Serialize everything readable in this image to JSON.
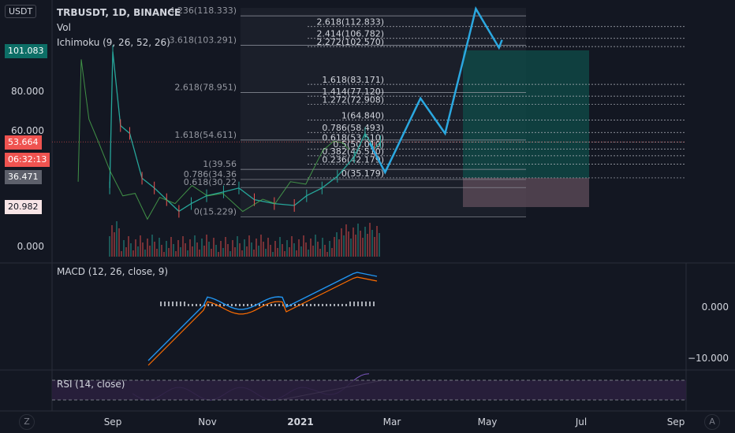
{
  "header": {
    "title": "TRBUSDT, 1D, BINANCE",
    "vol_label": "Vol",
    "ichimoku_label": "Ichimoku (9, 26, 52, 26)",
    "currency": "USDT"
  },
  "price_axis": {
    "ticks": [
      "80.000",
      "60.000",
      "0.000"
    ],
    "badges": [
      {
        "label": "101.083",
        "color": "#0d6e66"
      },
      {
        "label": "53.664",
        "color": "#ef5350"
      },
      {
        "label": "06:32:13",
        "color": "#ef5350"
      },
      {
        "label": "36.471",
        "color": "#5d606b"
      },
      {
        "label": "20.982",
        "color": "#f7e4e6"
      }
    ]
  },
  "macd": {
    "label": "MACD (12, 26, close, 9)",
    "ticks": [
      "0.000",
      "−10.000"
    ]
  },
  "rsi": {
    "label": "RSI (14, close)"
  },
  "time_axis": {
    "labels": [
      "Sep",
      "Nov",
      "2021",
      "Mar",
      "May",
      "Jul",
      "Sep"
    ]
  },
  "corners": {
    "left": "Z",
    "right": "A"
  },
  "chart_data": {
    "type": "line",
    "title": "TRBUSDT, 1D, BINANCE",
    "fib_levels_upper": [
      {
        "ratio": "4.236",
        "price": 118.333,
        "label": "4.236(118.333)"
      },
      {
        "ratio": "3.618",
        "price": 103.291,
        "label": "3.618(103.291)"
      },
      {
        "ratio": "2.618",
        "price": 78.951,
        "label": "2.618(78.951)"
      },
      {
        "ratio": "1.618",
        "price": 54.611,
        "label": "1.618(54.611)"
      },
      {
        "ratio": "1",
        "price": 39.56,
        "label": "1(39.56"
      },
      {
        "ratio": "0.786",
        "price": 34.36,
        "label": "0.786(34.36"
      },
      {
        "ratio": "0.618",
        "price": 30.22,
        "label": "0.618(30.22"
      },
      {
        "ratio": "0",
        "price": 15.229,
        "label": "0(15.229)"
      }
    ],
    "fib_levels_right": [
      {
        "ratio": "2.618",
        "price": 112.833,
        "label": "2.618(112.833)"
      },
      {
        "ratio": "2.414",
        "price": 106.782,
        "label": "2.414(106.782)"
      },
      {
        "ratio": "2.272",
        "price": 102.57,
        "label": "2.272(102.570)"
      },
      {
        "ratio": "1.618",
        "price": 83.171,
        "label": "1.618(83.171)"
      },
      {
        "ratio": "1.414",
        "price": 77.12,
        "label": "1.414(77.120)"
      },
      {
        "ratio": "1.272",
        "price": 72.908,
        "label": "1.272(72.908)"
      },
      {
        "ratio": "1",
        "price": 64.84,
        "label": "1(64.840)"
      },
      {
        "ratio": "0.786",
        "price": 58.493,
        "label": "0.786(58.493)"
      },
      {
        "ratio": "0.618",
        "price": 53.51,
        "label": "0.618(53.510)"
      },
      {
        "ratio": "0.5",
        "price": 50.01,
        "label": "0.5(50.010)"
      },
      {
        "ratio": "0.382",
        "price": 46.51,
        "label": "0.382(46.510)"
      },
      {
        "ratio": "0.236",
        "price": 42.179,
        "label": "0.236(42.179)"
      },
      {
        "ratio": "0",
        "price": 35.179,
        "label": "0(35.179)"
      }
    ],
    "projection_path": [
      {
        "date": "2021-02-15",
        "price": 53
      },
      {
        "date": "2021-02-25",
        "price": 38
      },
      {
        "date": "2021-03-20",
        "price": 76
      },
      {
        "date": "2021-04-05",
        "price": 58
      },
      {
        "date": "2021-04-25",
        "price": 122
      },
      {
        "date": "2021-05-10",
        "price": 102
      },
      {
        "date": "2021-05-12",
        "price": 106
      }
    ],
    "price_path": [
      {
        "date": "2020-08-30",
        "price": 30
      },
      {
        "date": "2020-09-01",
        "price": 100
      },
      {
        "date": "2020-09-06",
        "price": 62
      },
      {
        "date": "2020-09-12",
        "price": 58
      },
      {
        "date": "2020-09-20",
        "price": 35
      },
      {
        "date": "2020-09-28",
        "price": 30
      },
      {
        "date": "2020-10-06",
        "price": 24
      },
      {
        "date": "2020-10-14",
        "price": 18
      },
      {
        "date": "2020-10-22",
        "price": 22
      },
      {
        "date": "2020-11-01",
        "price": 26
      },
      {
        "date": "2020-11-12",
        "price": 28
      },
      {
        "date": "2020-11-22",
        "price": 30
      },
      {
        "date": "2020-12-02",
        "price": 24
      },
      {
        "date": "2020-12-15",
        "price": 22
      },
      {
        "date": "2020-12-28",
        "price": 21
      },
      {
        "date": "2021-01-05",
        "price": 26
      },
      {
        "date": "2021-01-15",
        "price": 30
      },
      {
        "date": "2021-01-25",
        "price": 36
      },
      {
        "date": "2021-02-05",
        "price": 46
      },
      {
        "date": "2021-02-12",
        "price": 58
      },
      {
        "date": "2021-02-18",
        "price": 50
      },
      {
        "date": "2021-02-22",
        "price": 53.664
      }
    ]
  }
}
